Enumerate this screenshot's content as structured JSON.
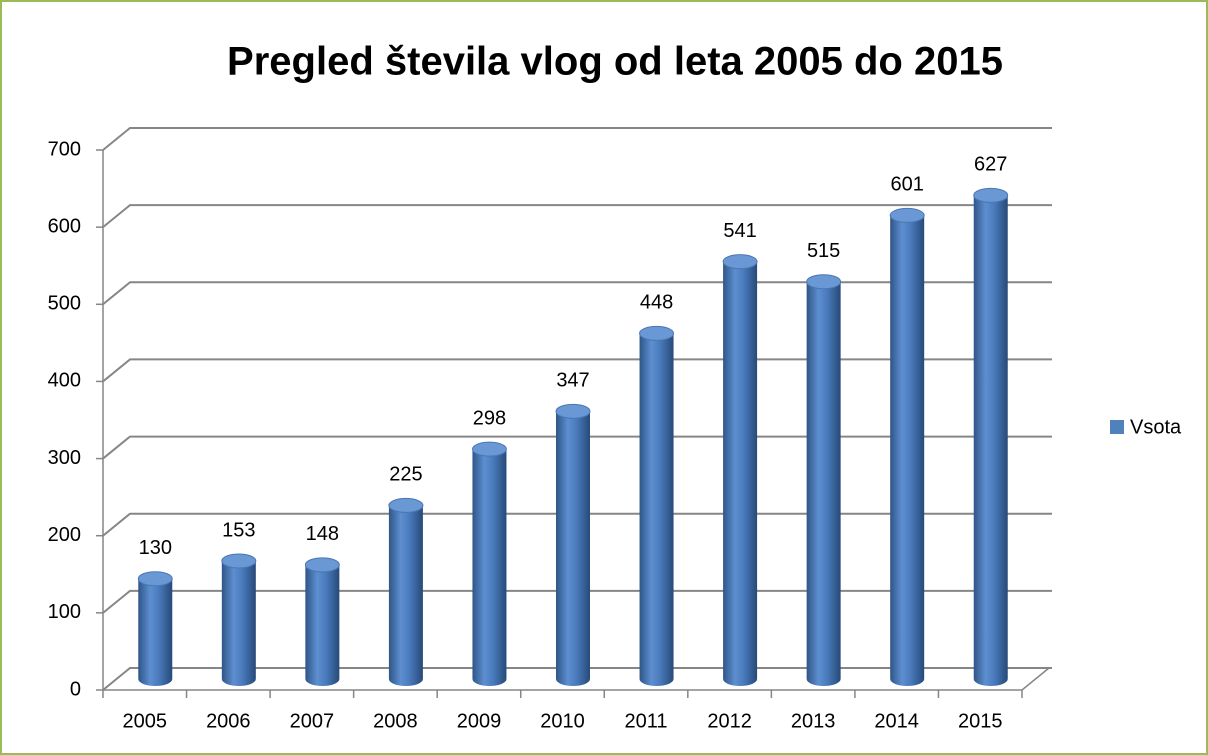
{
  "chart_data": {
    "type": "bar",
    "title": "Pregled števila vlog od leta 2005 do 2015",
    "categories": [
      "2005",
      "2006",
      "2007",
      "2008",
      "2009",
      "2010",
      "2011",
      "2012",
      "2013",
      "2014",
      "2015"
    ],
    "series": [
      {
        "name": "Vsota",
        "color": "#4f81bd",
        "values": [
          130,
          153,
          148,
          225,
          298,
          347,
          448,
          541,
          515,
          601,
          627
        ]
      }
    ],
    "ylim": [
      0,
      700
    ],
    "yticks": [
      0,
      100,
      200,
      300,
      400,
      500,
      600,
      700
    ],
    "grid": true,
    "legend": "right"
  }
}
